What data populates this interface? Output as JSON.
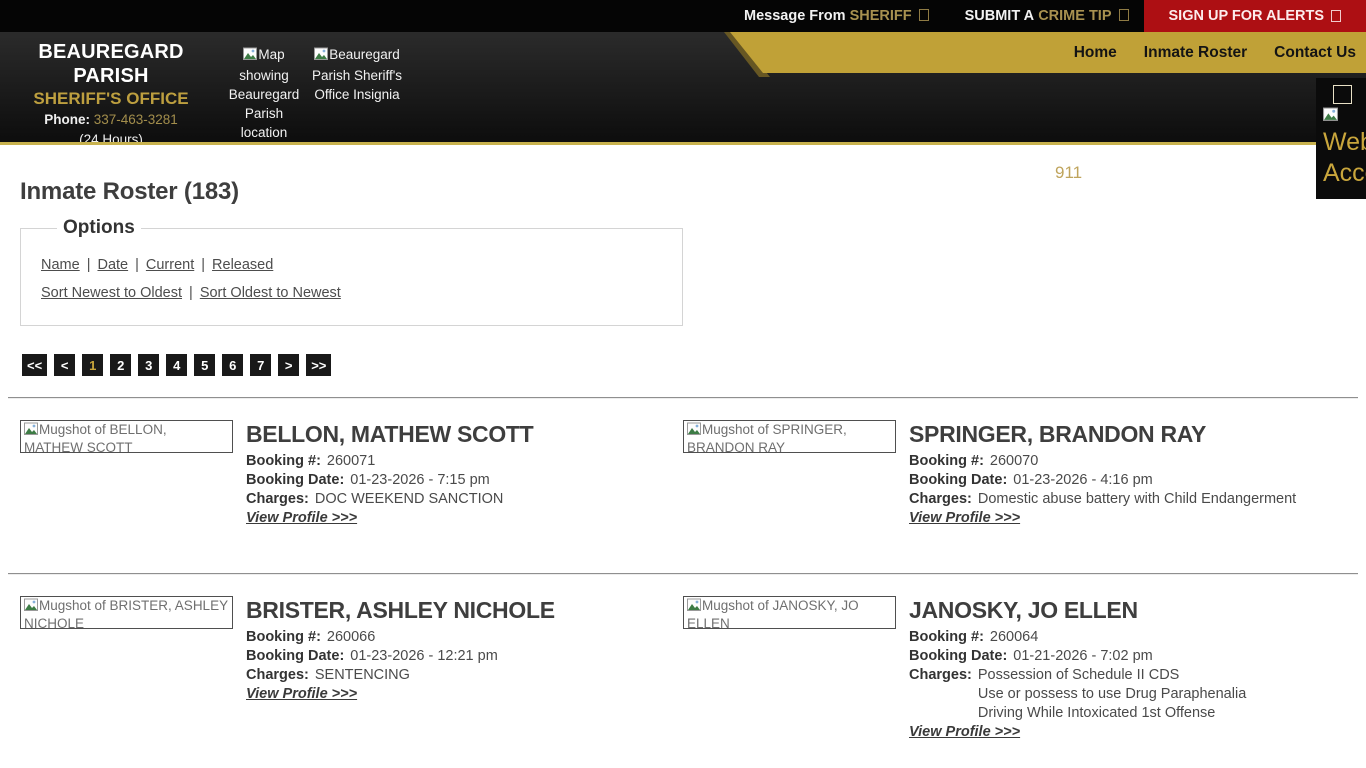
{
  "topbar": {
    "message_from": "Message From",
    "sheriff": "SHERIFF",
    "submit_a": "SUBMIT A",
    "crime_tip": "CRIME TIP",
    "alerts": "SIGN UP FOR ALERTS"
  },
  "header": {
    "org_line1": "BEAUREGARD PARISH",
    "org_line2": "SHERIFF'S OFFICE",
    "phone_label": "Phone:",
    "phone_number": "337-463-3281",
    "hours": "(24 Hours)",
    "map_alt": "Map showing Beauregard Parish location within the",
    "insignia_alt": "Beauregard Parish Sheriff's Office Insignia",
    "nav": [
      {
        "label": "Home"
      },
      {
        "label": "Inmate Roster"
      },
      {
        "label": "Contact Us"
      }
    ]
  },
  "accessibility": {
    "line1": "Web",
    "line2": "Accessibility"
  },
  "emergency": "911",
  "page": {
    "title": "Inmate Roster (183)"
  },
  "options": {
    "legend": "Options",
    "separator": "|",
    "filters": [
      "Name",
      "Date",
      "Current",
      "Released"
    ],
    "sorts": [
      "Sort Newest to Oldest",
      "Sort Oldest to Newest"
    ]
  },
  "pagination": {
    "first": "<<",
    "prev": "<",
    "pages": [
      "1",
      "2",
      "3",
      "4",
      "5",
      "6",
      "7"
    ],
    "next": ">",
    "last": ">>",
    "current": "1"
  },
  "labels": {
    "booking_no": "Booking #:",
    "booking_date": "Booking Date:",
    "charges": "Charges:",
    "view_profile": "View Profile >>>"
  },
  "inmates": [
    {
      "name": "BELLON, MATHEW SCOTT",
      "mugshot_alt": "Mugshot of BELLON, MATHEW SCOTT",
      "booking_no": "260071",
      "booking_date": "01-23-2026 - 7:15 pm",
      "charges": [
        "DOC WEEKEND SANCTION"
      ]
    },
    {
      "name": "SPRINGER, BRANDON RAY",
      "mugshot_alt": "Mugshot of SPRINGER, BRANDON RAY",
      "booking_no": "260070",
      "booking_date": "01-23-2026 - 4:16 pm",
      "charges": [
        "Domestic abuse battery with Child Endangerment"
      ]
    },
    {
      "name": "BRISTER, ASHLEY NICHOLE",
      "mugshot_alt": "Mugshot of BRISTER, ASHLEY NICHOLE",
      "booking_no": "260066",
      "booking_date": "01-23-2026 - 12:21 pm",
      "charges": [
        "SENTENCING"
      ]
    },
    {
      "name": "JANOSKY, JO ELLEN",
      "mugshot_alt": "Mugshot of JANOSKY, JO ELLEN",
      "booking_no": "260064",
      "booking_date": "01-21-2026 - 7:02 pm",
      "charges": [
        "Possession of Schedule II CDS",
        "Use or possess to use Drug Paraphenalia",
        "Driving While Intoxicated 1st Offense"
      ]
    }
  ],
  "colors": {
    "gold_nav": "#c0a137",
    "gold_accent": "#c9a63c",
    "alert_red": "#ad0f13",
    "topbar_black": "#050505"
  }
}
